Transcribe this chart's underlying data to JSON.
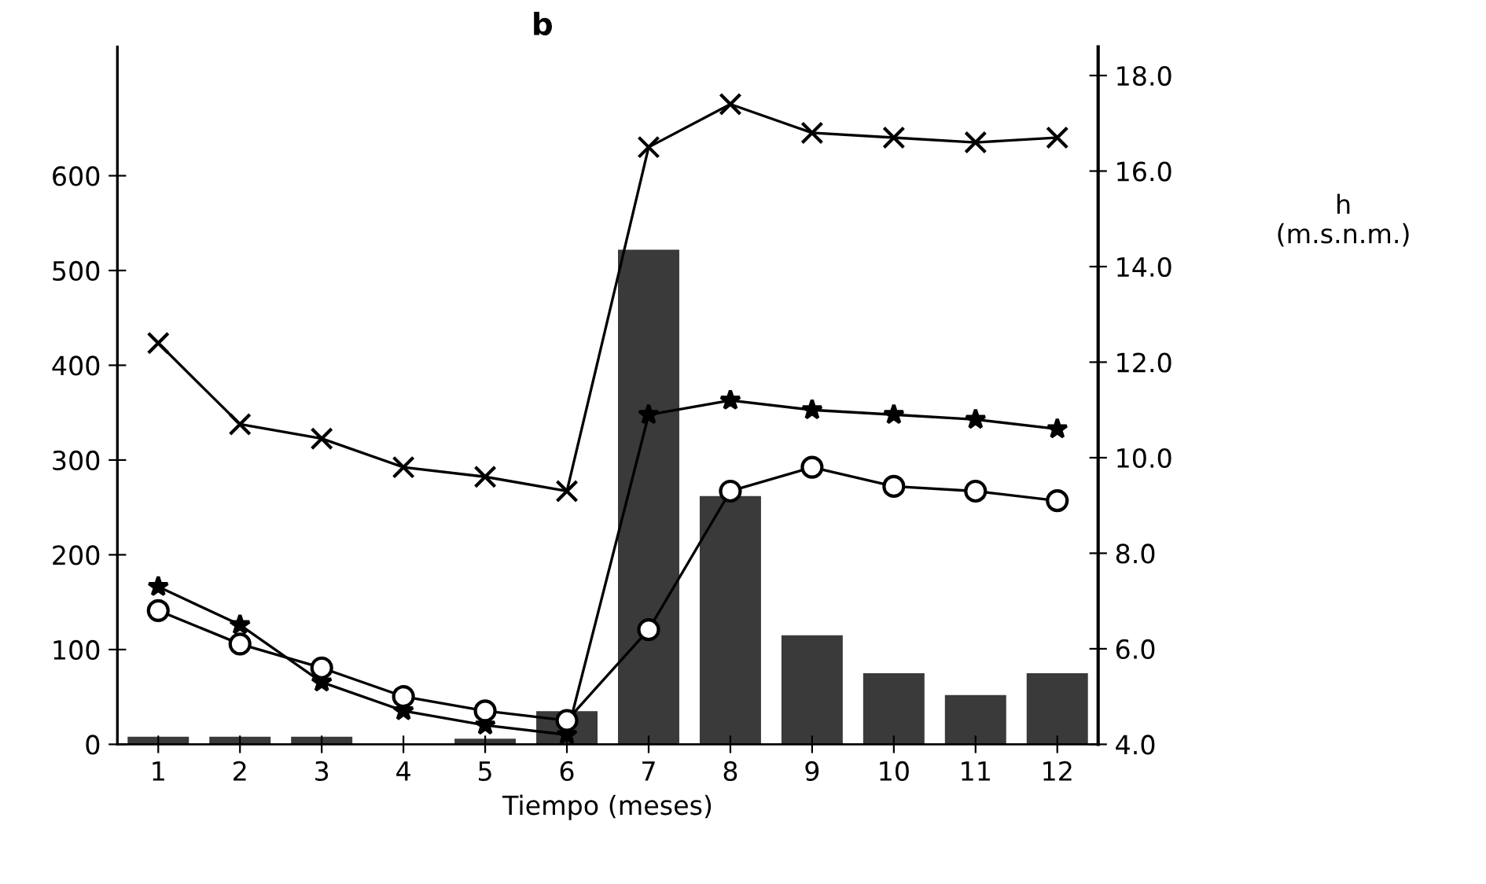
{
  "chart_data": {
    "type": "bar",
    "title": "b",
    "xlabel": "Tiempo (meses)",
    "y2label": "h\n(m.s.n.m.)",
    "categories": [
      "1",
      "2",
      "3",
      "4",
      "5",
      "6",
      "7",
      "8",
      "9",
      "10",
      "11",
      "12"
    ],
    "series": [
      {
        "color": "#3a3a3a",
        "values": [
          8,
          8,
          8,
          null,
          6,
          35,
          522,
          262,
          115,
          75,
          52,
          75
        ]
      },
      {
        "type": "line",
        "axis": "y2",
        "color": "#000000",
        "marker": "cross",
        "values": [
          12.4,
          10.7,
          10.4,
          9.8,
          9.6,
          9.3,
          16.5,
          17.4,
          16.8,
          16.7,
          16.6,
          16.7
        ]
      },
      {
        "type": "line",
        "axis": "y2",
        "color": "#000000",
        "marker": "star",
        "values": [
          7.3,
          6.5,
          5.3,
          4.7,
          4.4,
          4.2,
          10.9,
          11.2,
          11.0,
          10.9,
          10.8,
          10.6
        ]
      },
      {
        "type": "line",
        "axis": "y2",
        "color": "#000000",
        "marker": "circle",
        "values": [
          6.8,
          6.1,
          5.6,
          5.0,
          4.7,
          4.5,
          6.4,
          9.3,
          9.8,
          9.4,
          9.3,
          9.1
        ]
      }
    ],
    "ylim": [
      0,
      736
    ],
    "yticks": [
      0,
      100,
      200,
      300,
      400,
      500,
      600
    ],
    "y2lim": [
      4.0,
      18.6
    ],
    "y2ticks": [
      {
        "value": 4,
        "label": "4.0"
      },
      {
        "value": 6,
        "label": "6.0"
      },
      {
        "value": 8,
        "label": "8.0"
      },
      {
        "value": 10,
        "label": "10.0"
      },
      {
        "value": 12,
        "label": "12.0"
      },
      {
        "value": 14,
        "label": "14.0"
      },
      {
        "value": 16,
        "label": "16.0"
      },
      {
        "value": 18,
        "label": "18.0"
      }
    ],
    "grid": false,
    "legend": false,
    "line_style": "solid"
  }
}
